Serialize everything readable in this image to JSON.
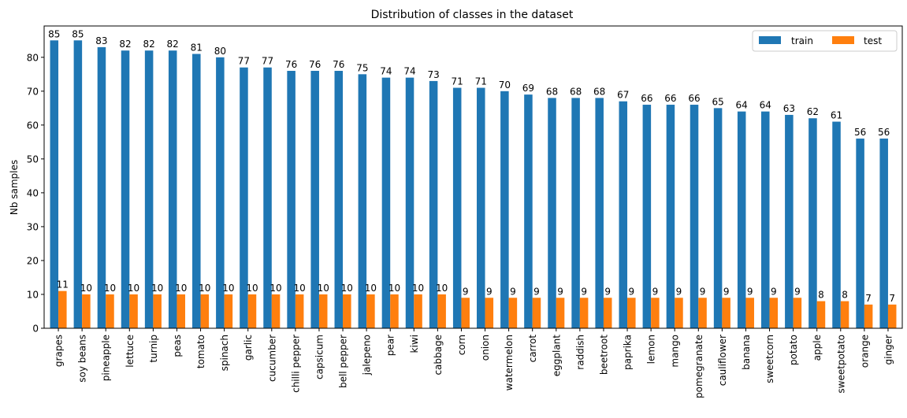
{
  "chart_data": {
    "type": "bar",
    "title": "Distribution of classes in the dataset",
    "xlabel": "",
    "ylabel": "Nb samples",
    "ylim": [
      0,
      89.25
    ],
    "yticks": [
      0,
      10,
      20,
      30,
      40,
      50,
      60,
      70,
      80
    ],
    "legend_position": "top-right",
    "grid": false,
    "categories": [
      "grapes",
      "soy beans",
      "pineapple",
      "lettuce",
      "turnip",
      "peas",
      "tomato",
      "spinach",
      "garlic",
      "cucumber",
      "chilli pepper",
      "capsicum",
      "bell pepper",
      "jalepeno",
      "pear",
      "kiwi",
      "cabbage",
      "corn",
      "onion",
      "watermelon",
      "carrot",
      "eggplant",
      "raddish",
      "beetroot",
      "paprika",
      "lemon",
      "mango",
      "pomegranate",
      "cauliflower",
      "banana",
      "sweetcorn",
      "potato",
      "apple",
      "sweetpotato",
      "orange",
      "ginger"
    ],
    "series": [
      {
        "name": "train",
        "color": "#1f77b4",
        "values": [
          85,
          85,
          83,
          82,
          82,
          82,
          81,
          80,
          77,
          77,
          76,
          76,
          76,
          75,
          74,
          74,
          73,
          71,
          71,
          70,
          69,
          68,
          68,
          68,
          67,
          66,
          66,
          66,
          65,
          64,
          64,
          63,
          62,
          61,
          56,
          56
        ]
      },
      {
        "name": "test",
        "color": "#ff7f0e",
        "values": [
          11,
          10,
          10,
          10,
          10,
          10,
          10,
          10,
          10,
          10,
          10,
          10,
          10,
          10,
          10,
          10,
          10,
          9,
          9,
          9,
          9,
          9,
          9,
          9,
          9,
          9,
          9,
          9,
          9,
          9,
          9,
          9,
          8,
          8,
          7,
          7
        ]
      }
    ]
  }
}
